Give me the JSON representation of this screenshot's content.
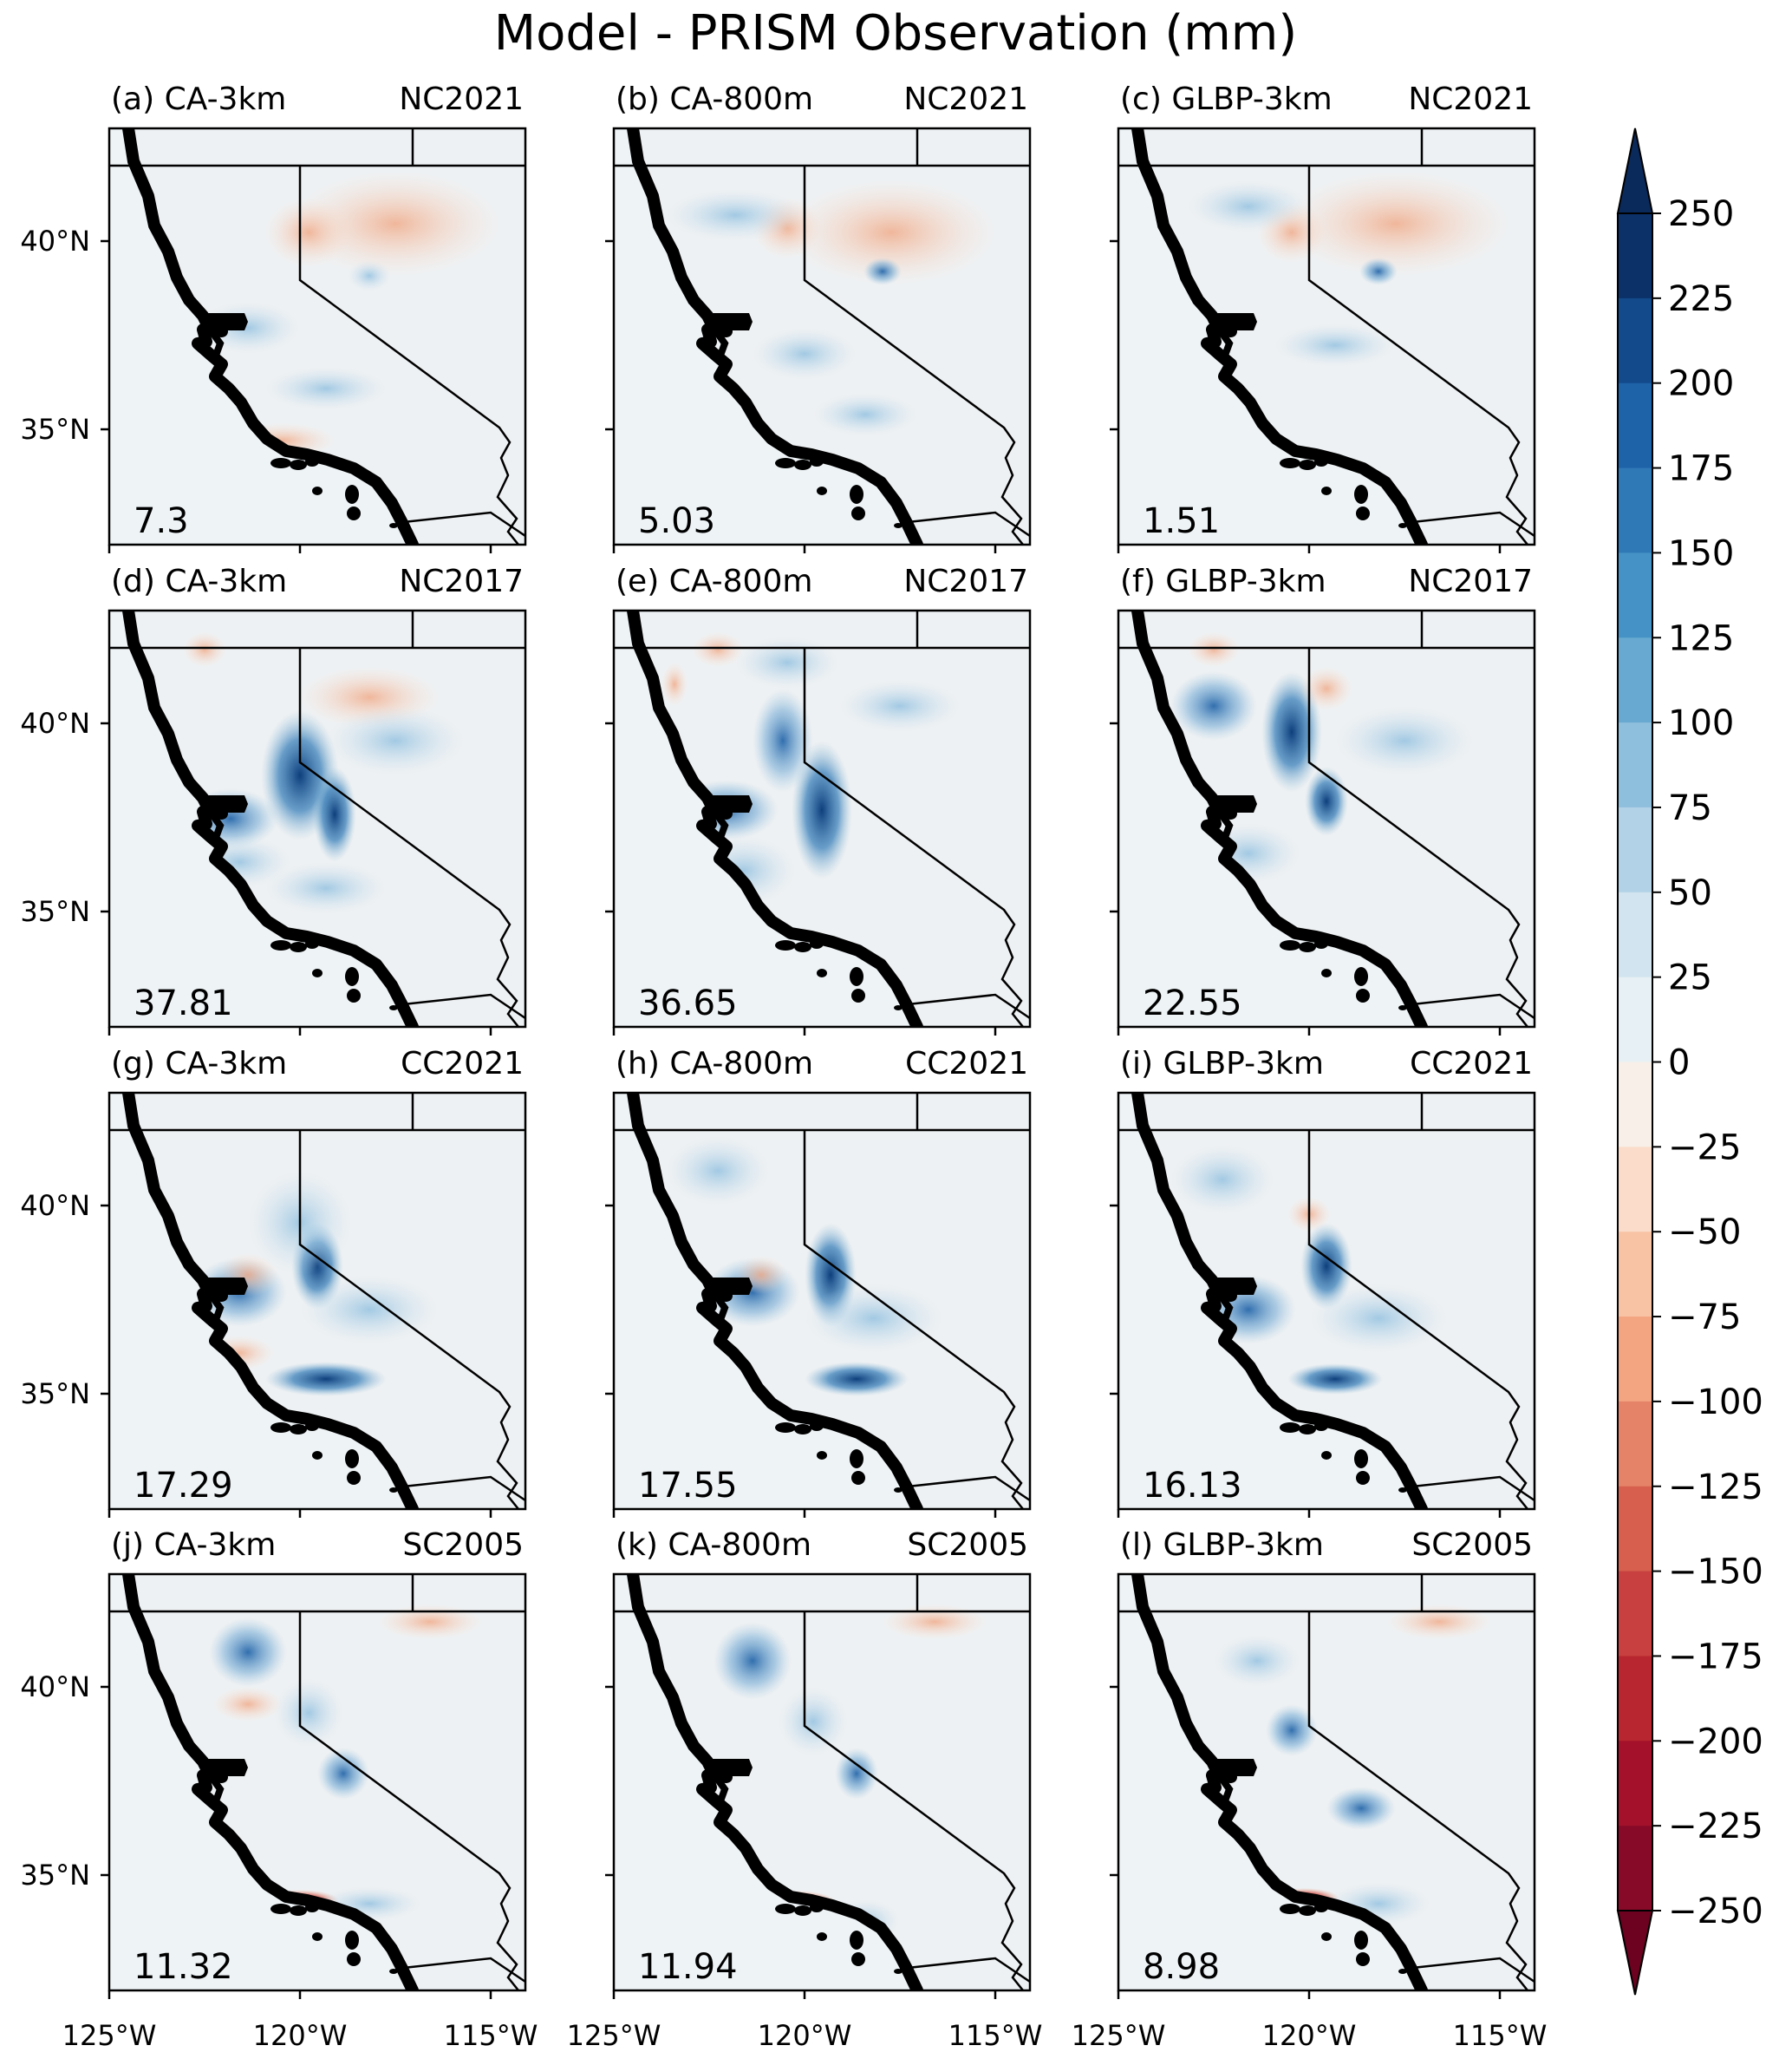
{
  "title": "Model - PRISM Observation (mm)",
  "chart_data": {
    "type": "heatmap",
    "title": "Model - PRISM Observation (mm)",
    "unit": "mm",
    "x_ticks": [
      "125°W",
      "120°W",
      "115°W"
    ],
    "y_ticks": [
      "40°N",
      "35°N"
    ],
    "xlim_deg_lon": [
      -125,
      -114
    ],
    "ylim_deg_lat": [
      32,
      43
    ],
    "colorbar": {
      "levels": [
        250,
        225,
        200,
        175,
        150,
        125,
        100,
        75,
        50,
        25,
        0,
        -25,
        -50,
        -75,
        -100,
        -125,
        -150,
        -175,
        -200,
        -225,
        -250
      ],
      "labels": [
        "250",
        "225",
        "200",
        "175",
        "150",
        "125",
        "100",
        "75",
        "50",
        "25",
        "0",
        "−25",
        "−50",
        "−75",
        "−100",
        "−125",
        "−150",
        "−175",
        "−200",
        "−225",
        "−250"
      ],
      "colors_top_to_bottom": [
        "#0c3068",
        "#134a8b",
        "#1e62a8",
        "#2f79b6",
        "#4593c6",
        "#67a9d0",
        "#8ebfdc",
        "#b2d3e7",
        "#d1e4ef",
        "#e7f0f4",
        "#f8efe9",
        "#fbdcca",
        "#f8c3a5",
        "#f3a481",
        "#e58368",
        "#d6604d",
        "#c84040",
        "#b8262f",
        "#a3112a",
        "#870a28"
      ],
      "extend": "both",
      "colors": {
        "top_extension": "#0b2a5c",
        "bottom_extension": "#6c0220"
      }
    },
    "panels": [
      {
        "label": "(a) CA-3km",
        "case": "NC2021",
        "value": "7.3"
      },
      {
        "label": "(b)  CA-800m",
        "case": "NC2021",
        "value": "5.03"
      },
      {
        "label": "(c) GLBP-3km",
        "case": "NC2021",
        "value": "1.51"
      },
      {
        "label": "(d) CA-3km",
        "case": "NC2017",
        "value": "37.81"
      },
      {
        "label": "(e)  CA-800m",
        "case": "NC2017",
        "value": "36.65"
      },
      {
        "label": "(f) GLBP-3km",
        "case": "NC2017",
        "value": "22.55"
      },
      {
        "label": "(g) CA-3km",
        "case": "CC2021",
        "value": "17.29"
      },
      {
        "label": "(h)  CA-800m",
        "case": "CC2021",
        "value": "17.55"
      },
      {
        "label": "(i) GLBP-3km",
        "case": "CC2021",
        "value": "16.13"
      },
      {
        "label": "(j) CA-3km",
        "case": "SC2005",
        "value": "11.32"
      },
      {
        "label": "(k)  CA-800m",
        "case": "SC2005",
        "value": "11.94"
      },
      {
        "label": "(l) GLBP-3km",
        "case": "SC2005",
        "value": "8.98"
      }
    ]
  },
  "colors": {
    "ocean": "#eef3f6",
    "coast": "#000000",
    "border": "#000000",
    "wet": "#4f8fc7",
    "wet_strong": "#1d5aa0",
    "dry": "#f3c2ab",
    "dry_strong": "#c8342f"
  }
}
